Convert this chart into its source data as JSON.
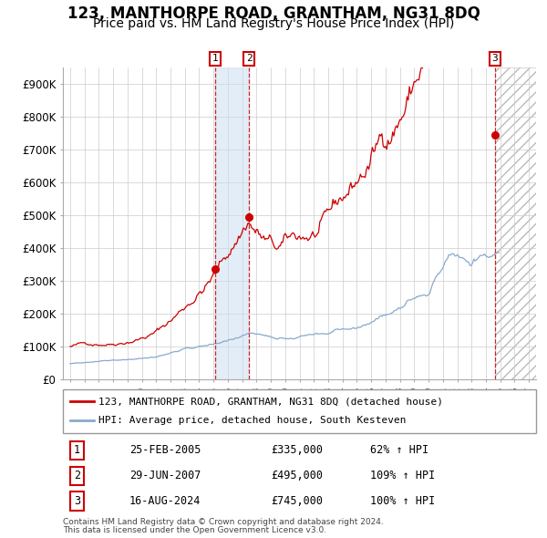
{
  "title": "123, MANTHORPE ROAD, GRANTHAM, NG31 8DQ",
  "subtitle": "Price paid vs. HM Land Registry's House Price Index (HPI)",
  "title_fontsize": 12,
  "subtitle_fontsize": 10,
  "red_line_label": "123, MANTHORPE ROAD, GRANTHAM, NG31 8DQ (detached house)",
  "blue_line_label": "HPI: Average price, detached house, South Kesteven",
  "transactions": [
    {
      "num": 1,
      "date": "25-FEB-2005",
      "price": "£335,000",
      "pct": "62% ↑ HPI"
    },
    {
      "num": 2,
      "date": "29-JUN-2007",
      "price": "£495,000",
      "pct": "109% ↑ HPI"
    },
    {
      "num": 3,
      "date": "16-AUG-2024",
      "price": "£745,000",
      "pct": "100% ↑ HPI"
    }
  ],
  "transaction_dates_decimal": [
    2005.14,
    2007.49,
    2024.63
  ],
  "transaction_prices": [
    335000,
    495000,
    745000
  ],
  "ylim": [
    0,
    950000
  ],
  "yticks": [
    0,
    100000,
    200000,
    300000,
    400000,
    500000,
    600000,
    700000,
    800000,
    900000
  ],
  "ytick_labels": [
    "£0",
    "£100K",
    "£200K",
    "£300K",
    "£400K",
    "£500K",
    "£600K",
    "£700K",
    "£800K",
    "£900K"
  ],
  "red_color": "#cc0000",
  "blue_color": "#88aacc",
  "grid_color": "#cccccc",
  "background_color": "#ffffff",
  "footnote_line1": "Contains HM Land Registry data © Crown copyright and database right 2024.",
  "footnote_line2": "This data is licensed under the Open Government Licence v3.0.",
  "xlim_start": 1994.5,
  "xlim_end": 2027.5,
  "future_start": 2024.63,
  "red_seed": 42,
  "blue_seed": 42
}
